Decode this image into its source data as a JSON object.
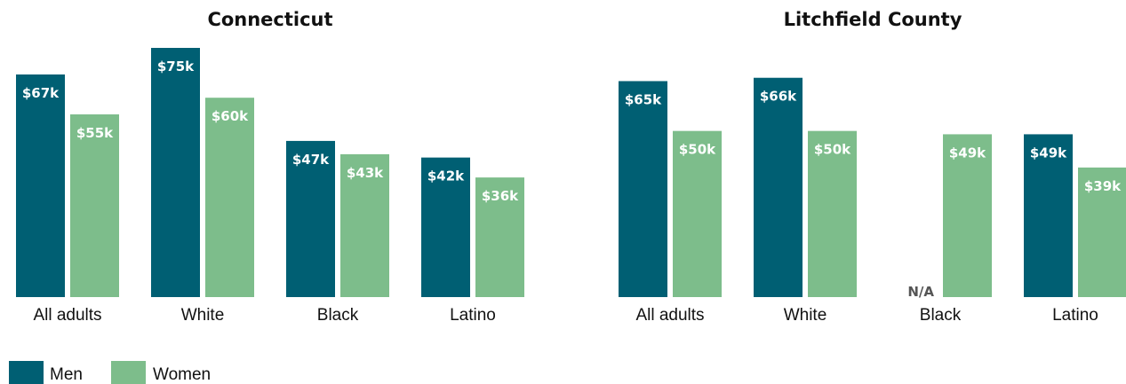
{
  "colors": {
    "men": "#005f73",
    "women": "#7dbd8b"
  },
  "legend": [
    {
      "key": "men",
      "label": "Men",
      "color": "#005f73"
    },
    {
      "key": "women",
      "label": "Women",
      "color": "#7dbd8b"
    }
  ],
  "chart_data": [
    {
      "type": "bar",
      "title": "Connecticut",
      "categories": [
        "All adults",
        "White",
        "Black",
        "Latino"
      ],
      "series": [
        {
          "name": "Men",
          "values": [
            67,
            75,
            47,
            42
          ],
          "labels": [
            "$67k",
            "$75k",
            "$47k",
            "$42k"
          ]
        },
        {
          "name": "Women",
          "values": [
            55,
            60,
            43,
            36
          ],
          "labels": [
            "$55k",
            "$60k",
            "$43k",
            "$36k"
          ]
        }
      ],
      "xlabel": "",
      "ylabel": "",
      "ylim": [
        0,
        75
      ],
      "grid": false,
      "legend": "bottom-left"
    },
    {
      "type": "bar",
      "title": "Litchfield County",
      "categories": [
        "All adults",
        "White",
        "Black",
        "Latino"
      ],
      "series": [
        {
          "name": "Men",
          "values": [
            65,
            66,
            null,
            49
          ],
          "labels": [
            "$65k",
            "$66k",
            "N/A",
            "$49k"
          ]
        },
        {
          "name": "Women",
          "values": [
            50,
            50,
            49,
            39
          ],
          "labels": [
            "$50k",
            "$50k",
            "$49k",
            "$39k"
          ]
        }
      ],
      "xlabel": "",
      "ylabel": "",
      "ylim": [
        0,
        75
      ],
      "grid": false,
      "legend": "bottom-left"
    }
  ]
}
